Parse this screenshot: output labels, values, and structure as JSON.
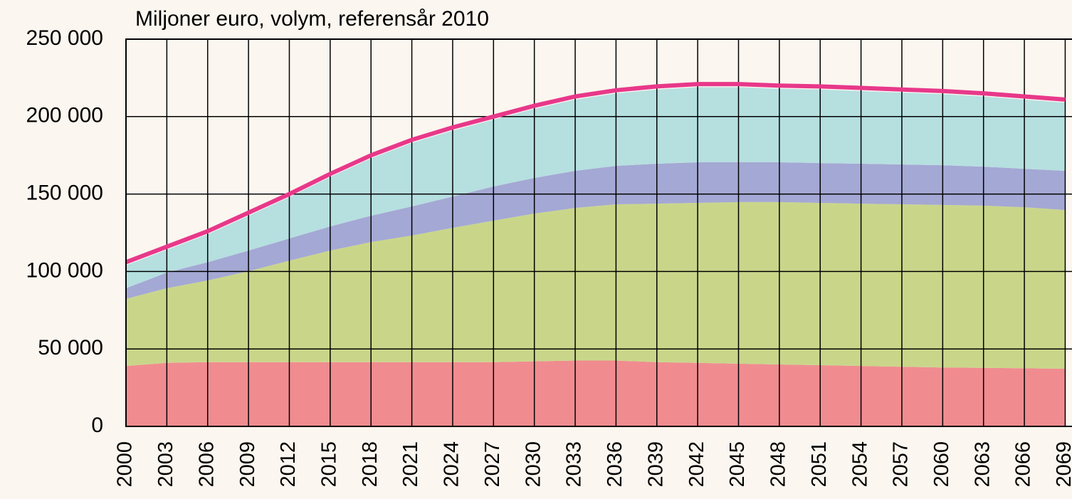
{
  "chart_data": {
    "type": "stacked_area",
    "title": "Miljoner euro, volym, referensår 2010",
    "x": [
      2000,
      2003,
      2006,
      2009,
      2012,
      2015,
      2018,
      2021,
      2024,
      2027,
      2030,
      2033,
      2036,
      2039,
      2042,
      2045,
      2048,
      2051,
      2054,
      2057,
      2060,
      2063,
      2066,
      2069
    ],
    "series": [
      {
        "color": "#f08c90",
        "values": [
          39000,
          41000,
          41500,
          41500,
          41500,
          41500,
          41500,
          41500,
          41500,
          41500,
          42000,
          42500,
          42500,
          41500,
          41000,
          40500,
          40000,
          39500,
          39000,
          38500,
          38000,
          37800,
          37500,
          37200
        ]
      },
      {
        "color": "#c9d68a",
        "values": [
          43300,
          48200,
          52700,
          58700,
          65500,
          72000,
          77500,
          81700,
          86700,
          91300,
          95400,
          98500,
          100900,
          102300,
          103300,
          104300,
          104800,
          104800,
          104800,
          104900,
          105000,
          104700,
          104000,
          102500
        ]
      },
      {
        "color": "#a4a8d4",
        "values": [
          6900,
          10100,
          11800,
          13300,
          14300,
          15600,
          17000,
          18800,
          20200,
          22100,
          23000,
          24000,
          24800,
          25800,
          26200,
          25700,
          25700,
          25700,
          25800,
          25700,
          25600,
          25200,
          24800,
          25300
        ]
      },
      {
        "color": "#b6dfe0",
        "values": [
          14800,
          14700,
          18000,
          22500,
          26700,
          31900,
          37000,
          41000,
          42600,
          43100,
          44600,
          46000,
          46800,
          47900,
          48500,
          48500,
          47500,
          47500,
          46900,
          46400,
          45900,
          45300,
          44700,
          44000
        ]
      },
      {
        "color": "#e8388a",
        "type": "line",
        "values": [
          106000,
          116000,
          126000,
          138000,
          150000,
          163000,
          175000,
          185000,
          193000,
          200000,
          207000,
          213000,
          217000,
          219500,
          221000,
          221000,
          220000,
          219500,
          218500,
          217500,
          216500,
          215000,
          213000,
          211000
        ]
      }
    ],
    "xlim": [
      2000,
      2069.5
    ],
    "xticks": [
      2000,
      2003,
      2006,
      2009,
      2012,
      2015,
      2018,
      2021,
      2024,
      2027,
      2030,
      2033,
      2036,
      2039,
      2042,
      2045,
      2048,
      2051,
      2054,
      2057,
      2060,
      2063,
      2066,
      2069
    ],
    "ylim": [
      0,
      250000
    ],
    "yticks": [
      0,
      {
        "value": 50000,
        "label": "50 000"
      },
      {
        "value": 100000,
        "label": "100 000"
      },
      {
        "value": 150000,
        "label": "150 000"
      },
      {
        "value": 200000,
        "label": "200 000"
      },
      {
        "value": 250000,
        "label": "250 000"
      }
    ],
    "grid": true
  }
}
